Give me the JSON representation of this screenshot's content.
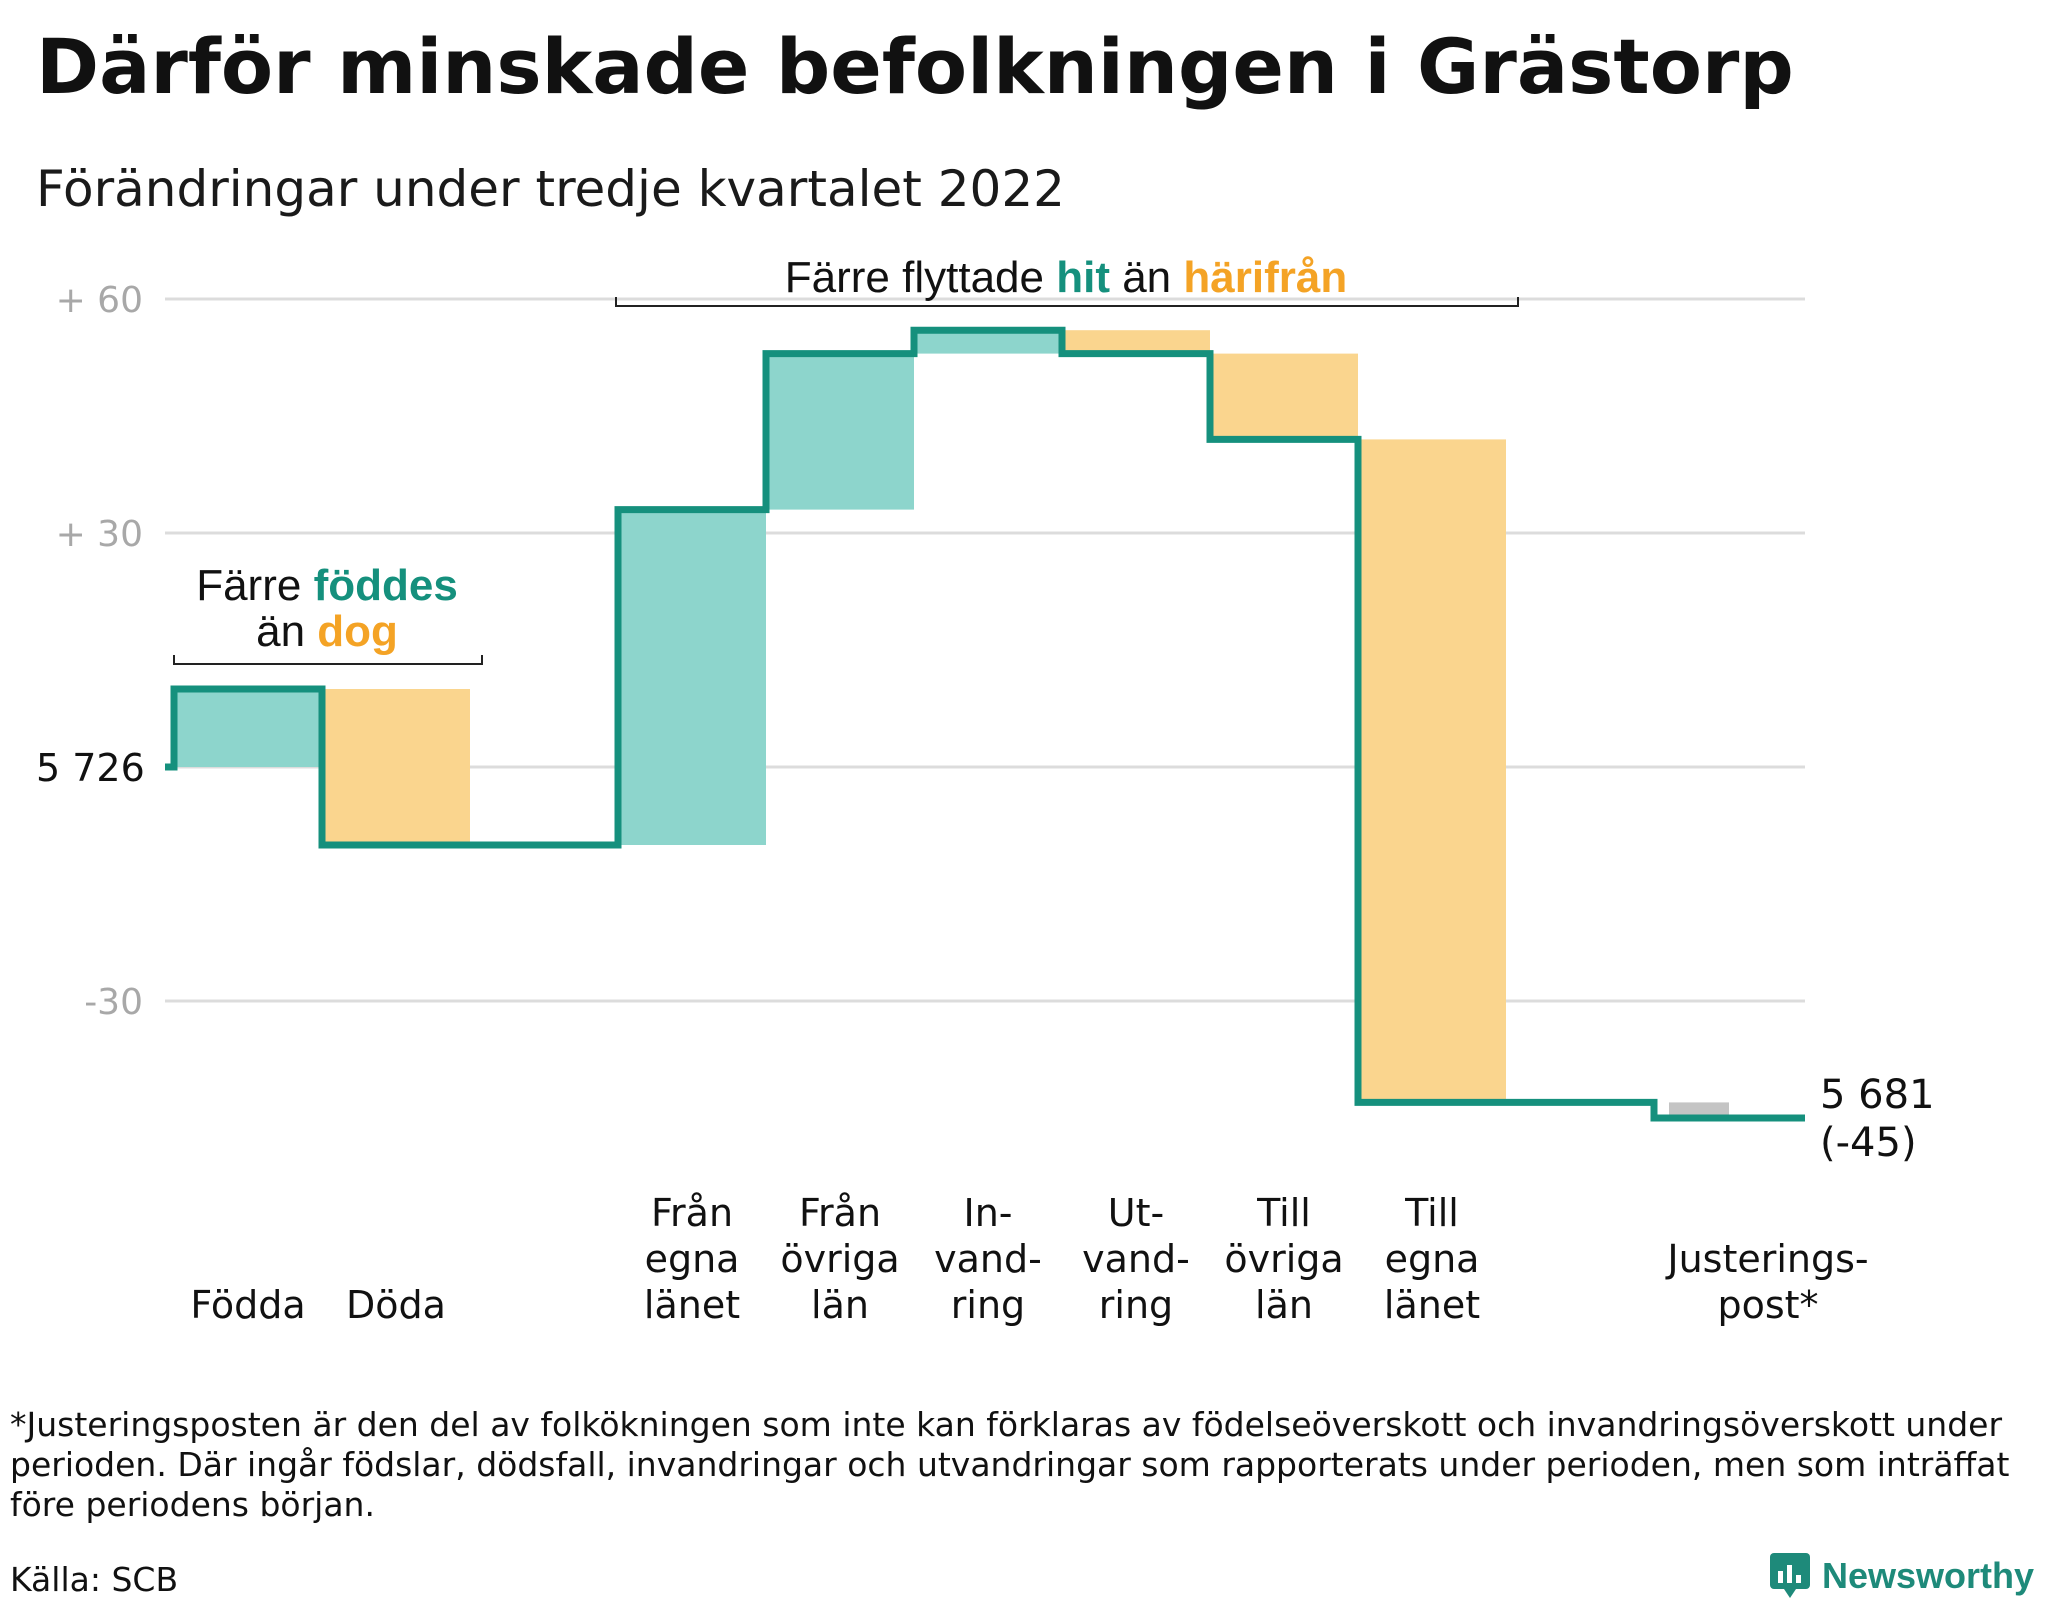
{
  "title": "Därför minskade befolkningen i Grästorp",
  "subtitle": "Förändringar under tredje kvartalet 2022",
  "colors": {
    "teal_line": "#15907d",
    "teal_fill": "#8dd5cc",
    "orange_fill": "#fad58e",
    "orange_text": "#f4a325",
    "grey_fill": "#c4c4c4",
    "grid": "#dcdcdc",
    "tick_text": "#a8a8a8"
  },
  "chart_data": {
    "type": "waterfall",
    "start_value": 5726,
    "start_label": "5 726",
    "end_label": "5 681",
    "end_change_label": "(-45)",
    "ylim": [
      -49,
      62
    ],
    "yticks": [
      {
        "value": 60,
        "label": "+ 60"
      },
      {
        "value": 30,
        "label": "+ 30"
      },
      {
        "value": 0,
        "label": ""
      },
      {
        "value": -30,
        "label": "-30"
      }
    ],
    "steps": [
      {
        "label_lines": [
          "Födda"
        ],
        "delta": 10,
        "kind": "inflow"
      },
      {
        "label_lines": [
          "Döda"
        ],
        "delta": -20,
        "kind": "outflow"
      },
      {
        "label_lines": [],
        "delta": 0,
        "kind": "spacer"
      },
      {
        "label_lines": [
          "Från",
          "egna",
          "länet"
        ],
        "delta": 43,
        "kind": "inflow"
      },
      {
        "label_lines": [
          "Från",
          "övriga",
          "län"
        ],
        "delta": 20,
        "kind": "inflow"
      },
      {
        "label_lines": [
          "In-",
          "vand-",
          "ring"
        ],
        "delta": 3,
        "kind": "inflow"
      },
      {
        "label_lines": [
          "Ut-",
          "vand-",
          "ring"
        ],
        "delta": -3,
        "kind": "outflow"
      },
      {
        "label_lines": [
          "Till",
          "övriga",
          "län"
        ],
        "delta": -11,
        "kind": "outflow"
      },
      {
        "label_lines": [
          "Till",
          "egna",
          "länet"
        ],
        "delta": -85,
        "kind": "outflow"
      },
      {
        "label_lines": [],
        "delta": 0,
        "kind": "spacer"
      },
      {
        "label_lines": [
          "Justerings-",
          "post*"
        ],
        "delta": -2,
        "kind": "adjustment"
      }
    ],
    "annotations": [
      {
        "group": "births",
        "parts": [
          {
            "text": "Färre ",
            "style": "plain"
          },
          {
            "text": "föddes",
            "style": "teal"
          },
          {
            "text": "\n",
            "style": "plain"
          },
          {
            "text": "än ",
            "style": "plain"
          },
          {
            "text": "dog",
            "style": "orange"
          }
        ]
      },
      {
        "group": "migration",
        "parts": [
          {
            "text": "Färre flyttade ",
            "style": "plain"
          },
          {
            "text": "hit",
            "style": "teal"
          },
          {
            "text": " än ",
            "style": "plain"
          },
          {
            "text": "härifrån",
            "style": "orange"
          }
        ]
      }
    ]
  },
  "footnote": "*Justeringsposten är den del av folkökningen som inte kan förklaras av födelseöverskott och invandringsöverskott under perioden. Där ingår födslar, dödsfall, invandringar och utvandringar som rapporterats under perioden, men som inträffat före periodens början.",
  "source": "Källa: SCB",
  "brand": "Newsworthy",
  "brand_icon": "newsworthy-logo-icon"
}
